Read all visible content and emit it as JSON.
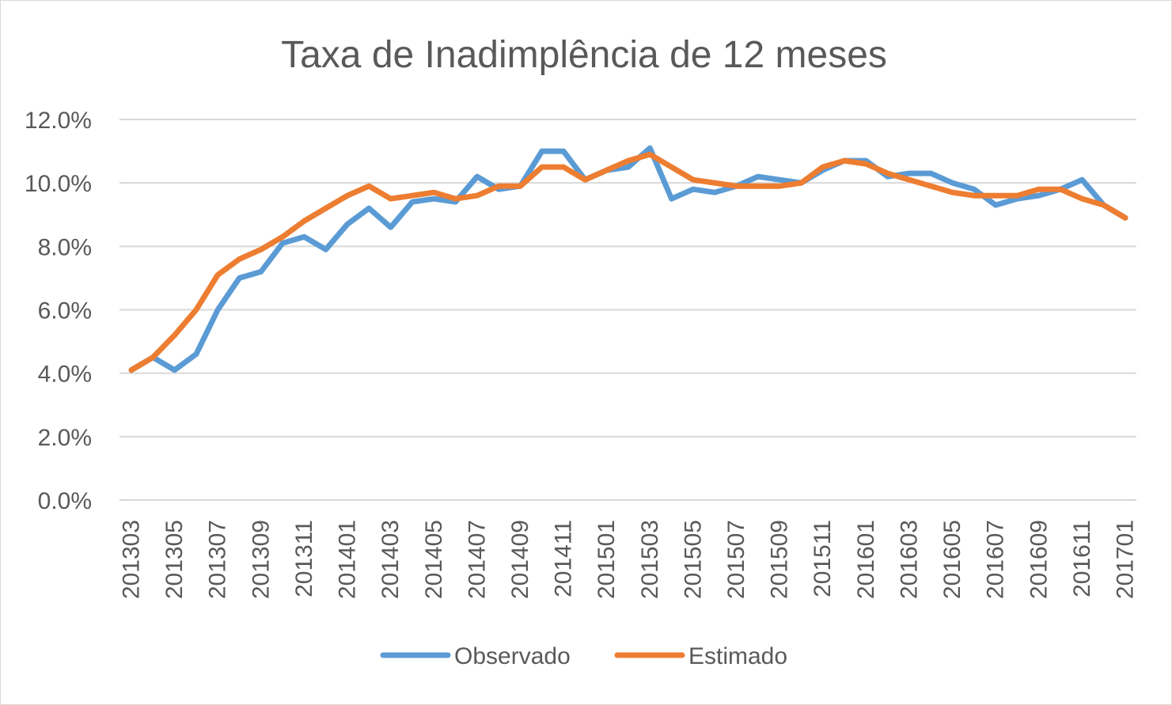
{
  "chart_data": {
    "type": "line",
    "title": "Taxa de Inadimplência de 12 meses",
    "xlabel": "",
    "ylabel": "",
    "ylim": [
      0,
      0.12
    ],
    "y_ticks": [
      0.0,
      0.02,
      0.04,
      0.06,
      0.08,
      0.1,
      0.12
    ],
    "y_tick_labels": [
      "0.0%",
      "2.0%",
      "4.0%",
      "6.0%",
      "8.0%",
      "10.0%",
      "12.0%"
    ],
    "x_tick_labels": [
      "201303",
      "201305",
      "201307",
      "201309",
      "201311",
      "201401",
      "201403",
      "201405",
      "201407",
      "201409",
      "201411",
      "201501",
      "201503",
      "201505",
      "201507",
      "201509",
      "201511",
      "201601",
      "201603",
      "201605",
      "201607",
      "201609",
      "201611",
      "201701"
    ],
    "categories": [
      "201303",
      "201304",
      "201305",
      "201306",
      "201307",
      "201308",
      "201309",
      "201310",
      "201311",
      "201312",
      "201401",
      "201402",
      "201403",
      "201404",
      "201405",
      "201406",
      "201407",
      "201408",
      "201409",
      "201410",
      "201411",
      "201412",
      "201501",
      "201502",
      "201503",
      "201504",
      "201505",
      "201506",
      "201507",
      "201508",
      "201509",
      "201510",
      "201511",
      "201512",
      "201601",
      "201602",
      "201603",
      "201604",
      "201605",
      "201606",
      "201607",
      "201608",
      "201609",
      "201610",
      "201611",
      "201612",
      "201701"
    ],
    "grid": true,
    "legend_position": "bottom",
    "series": [
      {
        "name": "Observado",
        "color": "#5b9bd5",
        "values": [
          0.041,
          0.045,
          0.041,
          0.046,
          0.06,
          0.07,
          0.072,
          0.081,
          0.083,
          0.079,
          0.087,
          0.092,
          0.086,
          0.094,
          0.095,
          0.094,
          0.102,
          0.098,
          0.099,
          0.11,
          0.11,
          0.101,
          0.104,
          0.105,
          0.111,
          0.095,
          0.098,
          0.097,
          0.099,
          0.102,
          0.101,
          0.1,
          0.104,
          0.107,
          0.107,
          0.102,
          0.103,
          0.103,
          0.1,
          0.098,
          0.093,
          0.095,
          0.096,
          0.098,
          0.101,
          0.093,
          0.089
        ]
      },
      {
        "name": "Estimado",
        "color": "#ed7d31",
        "values": [
          0.041,
          0.045,
          0.052,
          0.06,
          0.071,
          0.076,
          0.079,
          0.083,
          0.088,
          0.092,
          0.096,
          0.099,
          0.095,
          0.096,
          0.097,
          0.095,
          0.096,
          0.099,
          0.099,
          0.105,
          0.105,
          0.101,
          0.104,
          0.107,
          0.109,
          0.105,
          0.101,
          0.1,
          0.099,
          0.099,
          0.099,
          0.1,
          0.105,
          0.107,
          0.106,
          0.103,
          0.101,
          0.099,
          0.097,
          0.096,
          0.096,
          0.096,
          0.098,
          0.098,
          0.095,
          0.093,
          0.089
        ]
      }
    ]
  }
}
